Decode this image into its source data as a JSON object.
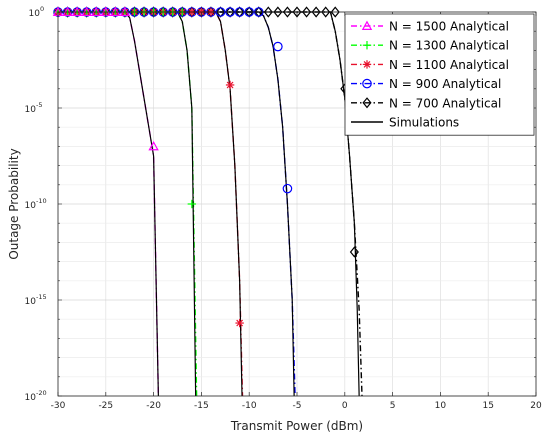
{
  "chart_data": {
    "type": "line",
    "xlabel": "Transmit Power (dBm)",
    "ylabel": "Outage Probability",
    "xlim": [
      -30,
      20
    ],
    "ylim_log10": [
      -20,
      0
    ],
    "y_scale": "log",
    "grid": true,
    "legend_position": "top-right",
    "x_ticks": [
      "-30",
      "-25",
      "-20",
      "-15",
      "-10",
      "-5",
      "0",
      "5",
      "10",
      "15",
      "20"
    ],
    "y_ticks": [
      {
        "base": "10",
        "exp": "0",
        "value": 0
      },
      {
        "base": "10",
        "exp": "-5",
        "value": -5
      },
      {
        "base": "10",
        "exp": "-10",
        "value": -10
      },
      {
        "base": "10",
        "exp": "-15",
        "value": -15
      },
      {
        "base": "10",
        "exp": "-20",
        "value": -20
      }
    ],
    "series": [
      {
        "name": "N = 1500 Analytical",
        "color": "#ff00ff",
        "marker": "triangle",
        "dash": "6,3,1.5,3",
        "curve": [
          [
            -30,
            0
          ],
          [
            -23,
            0
          ],
          [
            -22.5,
            -0.3
          ],
          [
            -22,
            -1.5
          ],
          [
            -21.5,
            -3
          ],
          [
            -21,
            -4.5
          ],
          [
            -20.5,
            -6
          ],
          [
            -20,
            -7.5
          ],
          [
            -19.5,
            -20
          ]
        ],
        "markers": [
          [
            -30,
            0
          ],
          [
            -29,
            0
          ],
          [
            -28,
            0
          ],
          [
            -27,
            0
          ],
          [
            -26,
            0
          ],
          [
            -25,
            0
          ],
          [
            -24,
            0
          ],
          [
            -23,
            0
          ],
          [
            -20,
            -7
          ]
        ]
      },
      {
        "name": "N = 1300 Analytical",
        "color": "#00ff00",
        "marker": "plus",
        "dash": "6,3,1.5,3",
        "curve": [
          [
            -30,
            0
          ],
          [
            -17.5,
            0
          ],
          [
            -17,
            -0.5
          ],
          [
            -16.5,
            -2
          ],
          [
            -16,
            -5
          ],
          [
            -15.5,
            -20
          ]
        ],
        "markers": [
          [
            -30,
            0
          ],
          [
            -29,
            0
          ],
          [
            -28,
            0
          ],
          [
            -27,
            0
          ],
          [
            -26,
            0
          ],
          [
            -25,
            0
          ],
          [
            -24,
            0
          ],
          [
            -23,
            0
          ],
          [
            -22,
            0
          ],
          [
            -21,
            0
          ],
          [
            -20,
            0
          ],
          [
            -19,
            0
          ],
          [
            -18,
            0
          ],
          [
            -17,
            0
          ],
          [
            -16,
            -10
          ]
        ]
      },
      {
        "name": "N = 1100 Analytical",
        "color": "#e8112d",
        "marker": "asterisk",
        "dash": "6,3,1.5,3",
        "curve": [
          [
            -30,
            0
          ],
          [
            -13.5,
            0
          ],
          [
            -13,
            -0.5
          ],
          [
            -12.5,
            -2
          ],
          [
            -12,
            -4
          ],
          [
            -11.5,
            -8
          ],
          [
            -11,
            -14
          ],
          [
            -10.7,
            -20
          ]
        ],
        "markers": [
          [
            -30,
            0
          ],
          [
            -29,
            0
          ],
          [
            -28,
            0
          ],
          [
            -27,
            0
          ],
          [
            -26,
            0
          ],
          [
            -25,
            0
          ],
          [
            -24,
            0
          ],
          [
            -23,
            0
          ],
          [
            -22,
            0
          ],
          [
            -21,
            0
          ],
          [
            -20,
            0
          ],
          [
            -19,
            0
          ],
          [
            -18,
            0
          ],
          [
            -17,
            0
          ],
          [
            -16,
            0
          ],
          [
            -15,
            0
          ],
          [
            -14,
            0
          ],
          [
            -12,
            -3.8
          ],
          [
            -11,
            -16.2
          ]
        ]
      },
      {
        "name": "N = 900 Analytical",
        "color": "#0000ff",
        "marker": "circle",
        "dash": "6,3,1.5,3",
        "curve": [
          [
            -30,
            0
          ],
          [
            -9,
            0
          ],
          [
            -8.5,
            -0.2
          ],
          [
            -8,
            -0.8
          ],
          [
            -7.5,
            -1.8
          ],
          [
            -7,
            -3.5
          ],
          [
            -6.5,
            -6
          ],
          [
            -6,
            -10
          ],
          [
            -5.5,
            -15
          ],
          [
            -5.2,
            -20
          ]
        ],
        "markers": [
          [
            -30,
            0
          ],
          [
            -29,
            0
          ],
          [
            -28,
            0
          ],
          [
            -27,
            0
          ],
          [
            -26,
            0
          ],
          [
            -25,
            0
          ],
          [
            -24,
            0
          ],
          [
            -23,
            0
          ],
          [
            -22,
            0
          ],
          [
            -21,
            0
          ],
          [
            -20,
            0
          ],
          [
            -19,
            0
          ],
          [
            -18,
            0
          ],
          [
            -17,
            0
          ],
          [
            -16,
            0
          ],
          [
            -15,
            0
          ],
          [
            -14,
            0
          ],
          [
            -13,
            0
          ],
          [
            -12,
            0
          ],
          [
            -11,
            0
          ],
          [
            -10,
            0
          ],
          [
            -9,
            0
          ],
          [
            -7,
            -1.8
          ],
          [
            -6,
            -9.2
          ]
        ]
      },
      {
        "name": "N = 700 Analytical",
        "color": "#000000",
        "marker": "diamond",
        "dash": "6,3,1.5,3",
        "curve": [
          [
            -30,
            0
          ],
          [
            -1.5,
            0
          ],
          [
            -1,
            -1
          ],
          [
            -0.5,
            -2.5
          ],
          [
            0,
            -4.5
          ],
          [
            0.5,
            -7.5
          ],
          [
            1,
            -11
          ],
          [
            1.5,
            -15.5
          ],
          [
            1.8,
            -20
          ]
        ],
        "markers": [
          [
            -30,
            0
          ],
          [
            -29,
            0
          ],
          [
            -28,
            0
          ],
          [
            -27,
            0
          ],
          [
            -26,
            0
          ],
          [
            -25,
            0
          ],
          [
            -24,
            0
          ],
          [
            -23,
            0
          ],
          [
            -22,
            0
          ],
          [
            -21,
            0
          ],
          [
            -20,
            0
          ],
          [
            -19,
            0
          ],
          [
            -18,
            0
          ],
          [
            -17,
            0
          ],
          [
            -16,
            0
          ],
          [
            -15,
            0
          ],
          [
            -14,
            0
          ],
          [
            -13,
            0
          ],
          [
            -12,
            0
          ],
          [
            -11,
            0
          ],
          [
            -10,
            0
          ],
          [
            -9,
            0
          ],
          [
            -8,
            0
          ],
          [
            -7,
            0
          ],
          [
            -6,
            0
          ],
          [
            -5,
            0
          ],
          [
            -4,
            0
          ],
          [
            -3,
            0
          ],
          [
            -2,
            0
          ],
          [
            -1,
            0
          ],
          [
            0,
            -4
          ],
          [
            1,
            -12.5
          ]
        ]
      },
      {
        "name": "Simulations",
        "color": "#000000",
        "marker": "none",
        "dash": "",
        "curves": [
          [
            [
              -30,
              0
            ],
            [
              -23,
              0
            ],
            [
              -22.5,
              -0.3
            ],
            [
              -22,
              -1.5
            ],
            [
              -21.5,
              -3
            ],
            [
              -21,
              -4.5
            ],
            [
              -20.5,
              -6
            ],
            [
              -20,
              -7.5
            ],
            [
              -19.5,
              -20
            ]
          ],
          [
            [
              -30,
              0
            ],
            [
              -17.5,
              0
            ],
            [
              -17,
              -0.5
            ],
            [
              -16.5,
              -2
            ],
            [
              -16,
              -5
            ],
            [
              -15.6,
              -20
            ]
          ],
          [
            [
              -30,
              0
            ],
            [
              -13.5,
              0
            ],
            [
              -13,
              -0.5
            ],
            [
              -12.5,
              -2
            ],
            [
              -12,
              -4
            ],
            [
              -11.5,
              -8
            ],
            [
              -11,
              -14
            ],
            [
              -10.75,
              -20
            ]
          ],
          [
            [
              -30,
              0
            ],
            [
              -9,
              0
            ],
            [
              -8.5,
              -0.2
            ],
            [
              -8,
              -0.8
            ],
            [
              -7.5,
              -1.8
            ],
            [
              -7,
              -3.5
            ],
            [
              -6.5,
              -6
            ],
            [
              -6,
              -10
            ],
            [
              -5.5,
              -15
            ],
            [
              -5.3,
              -20
            ]
          ],
          [
            [
              -30,
              0
            ],
            [
              -1.5,
              0
            ],
            [
              -1,
              -1
            ],
            [
              -0.5,
              -2.5
            ],
            [
              0,
              -4.5
            ],
            [
              0.5,
              -7.5
            ],
            [
              1,
              -11
            ],
            [
              1.3,
              -15.5
            ],
            [
              1.5,
              -20
            ]
          ]
        ]
      }
    ]
  }
}
